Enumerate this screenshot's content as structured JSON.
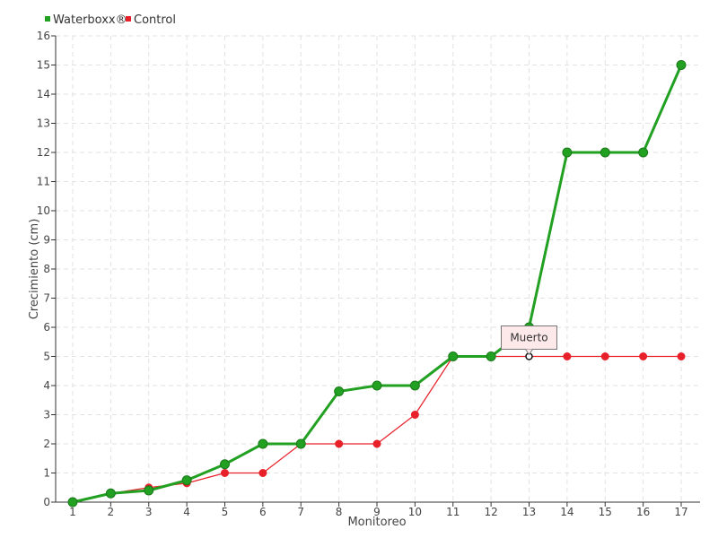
{
  "chart_data": {
    "type": "line",
    "title": "",
    "xlabel": "Monitoreo",
    "ylabel": "Crecimiento (cm)",
    "x": [
      1,
      2,
      3,
      4,
      5,
      6,
      7,
      8,
      9,
      10,
      11,
      12,
      13,
      14,
      15,
      16,
      17
    ],
    "ylim": [
      0,
      16
    ],
    "yticks": [
      0,
      1,
      2,
      3,
      4,
      5,
      6,
      7,
      8,
      9,
      10,
      11,
      12,
      13,
      14,
      15,
      16
    ],
    "grid": true,
    "legend_position": "top-left",
    "series": [
      {
        "name": "Waterboxx®",
        "color": "#22a022",
        "values": [
          0,
          0.3,
          0.4,
          0.75,
          1.3,
          2,
          2,
          3.8,
          4,
          4,
          5,
          5,
          6,
          12,
          12,
          12,
          15
        ]
      },
      {
        "name": "Control",
        "color": "#e8202a",
        "values": [
          0,
          0.3,
          0.5,
          0.65,
          1,
          1,
          2,
          2,
          2,
          3,
          5,
          5,
          5,
          5,
          5,
          5,
          5
        ]
      }
    ],
    "annotations": [
      {
        "text": "Muerto",
        "series": "Control",
        "x": 13,
        "y": 5
      }
    ]
  }
}
